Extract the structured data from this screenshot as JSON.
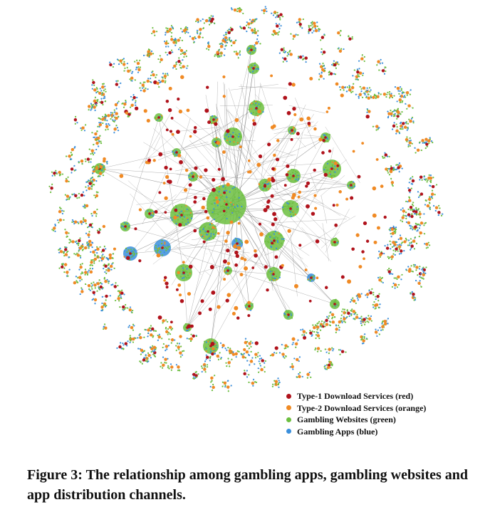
{
  "figure": {
    "caption": "Figure 3: The relationship among gambling apps, gambling websites and app distribution channels."
  },
  "legend": {
    "items": [
      {
        "label": "Type-1 Download Services (red)",
        "color": "#b0121b"
      },
      {
        "label": "Type-2 Download Services (orange)",
        "color": "#f08a24"
      },
      {
        "label": "Gambling Websites (green)",
        "color": "#6cbf3f"
      },
      {
        "label": "Gambling Apps (blue)",
        "color": "#3a8fdc"
      }
    ]
  },
  "colors": {
    "type1": "#b0121b",
    "type2": "#f08a24",
    "website": "#6cbf3f",
    "app": "#3a8fdc",
    "edge": "#555555"
  }
}
